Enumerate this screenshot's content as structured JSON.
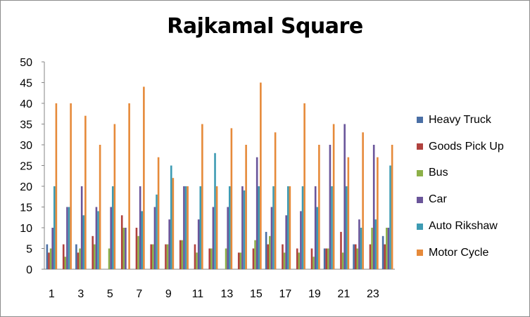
{
  "chart_data": {
    "type": "bar",
    "title": "Rajkamal Square",
    "ylim": [
      0,
      50
    ],
    "yticks": [
      0,
      5,
      10,
      15,
      20,
      25,
      30,
      35,
      40,
      45,
      50
    ],
    "categories": [
      "1",
      "2",
      "3",
      "4",
      "5",
      "6",
      "7",
      "8",
      "9",
      "10",
      "11",
      "12",
      "13",
      "14",
      "15",
      "16",
      "17",
      "18",
      "19",
      "20",
      "21",
      "22",
      "23",
      "24"
    ],
    "xtick_labels": [
      "1",
      "3",
      "5",
      "7",
      "9",
      "11",
      "13",
      "15",
      "17",
      "19",
      "21",
      "23"
    ],
    "legend_position": "right",
    "grid": false,
    "series": [
      {
        "name": "Heavy Truck",
        "color": "#4a6fa5",
        "values": [
          6,
          0,
          6,
          0,
          0,
          0,
          0,
          0,
          0,
          0,
          0,
          0,
          0,
          0,
          0,
          9,
          0,
          0,
          0,
          5,
          0,
          6,
          0,
          8
        ]
      },
      {
        "name": "Goods Pick Up",
        "color": "#b0413e",
        "values": [
          4,
          6,
          4,
          8,
          0,
          13,
          10,
          6,
          6,
          7,
          6,
          5,
          0,
          4,
          5,
          6,
          6,
          5,
          5,
          5,
          9,
          6,
          6,
          6
        ]
      },
      {
        "name": "Bus",
        "color": "#8db048",
        "values": [
          5,
          3,
          5,
          6,
          5,
          10,
          8,
          6,
          6,
          7,
          4,
          5,
          5,
          4,
          7,
          8,
          4,
          4,
          3,
          5,
          4,
          5,
          10,
          10
        ]
      },
      {
        "name": "Car",
        "color": "#6a559a",
        "values": [
          10,
          15,
          20,
          15,
          15,
          10,
          20,
          15,
          12,
          20,
          12,
          15,
          15,
          20,
          27,
          15,
          13,
          14,
          20,
          30,
          35,
          12,
          30,
          10
        ]
      },
      {
        "name": "Auto Rikshaw",
        "color": "#3d9bb3",
        "values": [
          20,
          15,
          13,
          14,
          20,
          0,
          14,
          18,
          25,
          20,
          20,
          28,
          20,
          19,
          20,
          20,
          20,
          20,
          15,
          20,
          20,
          10,
          12,
          25
        ]
      },
      {
        "name": "Motor Cycle",
        "color": "#e68a3a",
        "values": [
          40,
          40,
          37,
          30,
          35,
          40,
          44,
          27,
          22,
          20,
          35,
          20,
          34,
          30,
          45,
          33,
          20,
          40,
          30,
          35,
          27,
          33,
          27,
          30
        ]
      }
    ]
  }
}
